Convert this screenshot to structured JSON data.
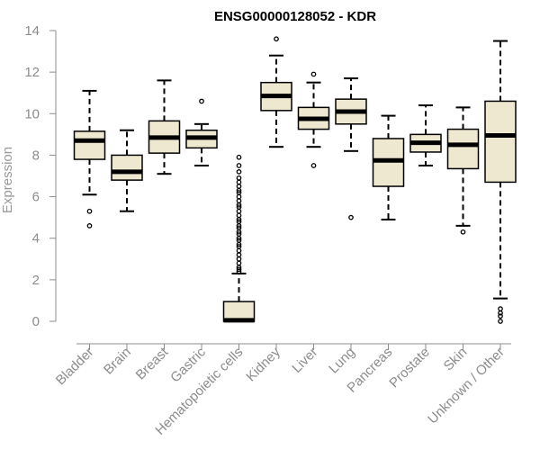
{
  "chart_data": {
    "type": "boxplot",
    "title": "ENSG00000128052 - KDR",
    "xlabel": "",
    "ylabel": "Expression",
    "ylim": [
      0,
      14
    ],
    "yticks": [
      0,
      2,
      4,
      6,
      8,
      10,
      12,
      14
    ],
    "grid": false,
    "box_fill": "#efe8d0",
    "categories": [
      "Bladder",
      "Brain",
      "Breast",
      "Gastric",
      "Hematopoietic cells",
      "Kidney",
      "Liver",
      "Lung",
      "Pancreas",
      "Prostate",
      "Skin",
      "Unknown / Other"
    ],
    "boxes": [
      {
        "label": "Bladder",
        "whisker_low": 6.1,
        "q1": 7.8,
        "median": 8.7,
        "q3": 9.15,
        "whisker_high": 11.1,
        "outliers": [
          5.3,
          4.6
        ]
      },
      {
        "label": "Brain",
        "whisker_low": 5.3,
        "q1": 6.8,
        "median": 7.2,
        "q3": 8.0,
        "whisker_high": 9.2,
        "outliers": []
      },
      {
        "label": "Breast",
        "whisker_low": 7.1,
        "q1": 8.1,
        "median": 8.85,
        "q3": 9.65,
        "whisker_high": 11.6,
        "outliers": []
      },
      {
        "label": "Gastric",
        "whisker_low": 7.5,
        "q1": 8.35,
        "median": 8.85,
        "q3": 9.2,
        "whisker_high": 9.5,
        "outliers": [
          10.6
        ]
      },
      {
        "label": "Hematopoietic cells",
        "whisker_low": 0.0,
        "q1": 0.0,
        "median": 0.05,
        "q3": 0.95,
        "whisker_high": 2.3,
        "outliers": [
          7.9,
          7.5,
          7.2,
          6.9,
          6.7,
          6.5,
          6.3,
          6.2,
          6.0,
          5.8,
          5.6,
          5.5,
          5.3,
          5.1,
          4.9,
          4.8,
          4.6,
          4.5,
          4.3,
          4.2,
          4.0,
          3.9,
          3.7,
          3.6,
          3.4,
          3.2,
          3.0,
          2.8,
          2.6,
          2.5,
          2.4
        ]
      },
      {
        "label": "Kidney",
        "whisker_low": 8.4,
        "q1": 10.15,
        "median": 10.85,
        "q3": 11.5,
        "whisker_high": 12.8,
        "outliers": [
          13.6
        ]
      },
      {
        "label": "Liver",
        "whisker_low": 8.4,
        "q1": 9.25,
        "median": 9.75,
        "q3": 10.3,
        "whisker_high": 11.5,
        "outliers": [
          11.9,
          7.5
        ]
      },
      {
        "label": "Lung",
        "whisker_low": 8.2,
        "q1": 9.5,
        "median": 10.1,
        "q3": 10.7,
        "whisker_high": 11.7,
        "outliers": [
          5.0
        ]
      },
      {
        "label": "Pancreas",
        "whisker_low": 4.9,
        "q1": 6.5,
        "median": 7.75,
        "q3": 8.8,
        "whisker_high": 9.9,
        "outliers": []
      },
      {
        "label": "Prostate",
        "whisker_low": 7.5,
        "q1": 8.15,
        "median": 8.6,
        "q3": 9.0,
        "whisker_high": 10.4,
        "outliers": []
      },
      {
        "label": "Skin",
        "whisker_low": 4.6,
        "q1": 7.35,
        "median": 8.5,
        "q3": 9.25,
        "whisker_high": 10.3,
        "outliers": [
          4.3
        ]
      },
      {
        "label": "Unknown / Other",
        "whisker_low": 1.1,
        "q1": 6.7,
        "median": 8.95,
        "q3": 10.6,
        "whisker_high": 13.5,
        "outliers": [
          0.6,
          0.4,
          0.25,
          0.0
        ]
      }
    ]
  }
}
